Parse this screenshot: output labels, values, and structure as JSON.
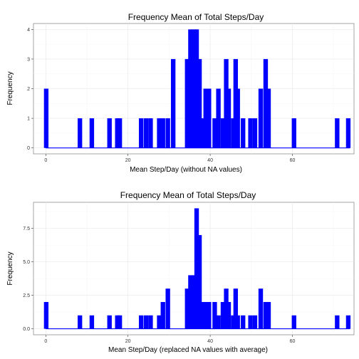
{
  "chart_data": [
    {
      "type": "bar",
      "title": "Frequency Mean of Total Steps/Day",
      "xlabel": "Mean Step/Day (without NA values)",
      "ylabel": "Frequency",
      "xlim": [
        -3,
        75
      ],
      "ylim": [
        -0.2,
        4.2
      ],
      "xticks": [
        0,
        20,
        40,
        60
      ],
      "yticks": [
        0,
        1,
        2,
        3,
        4
      ],
      "ytick_labels": [
        "0",
        "1",
        "2",
        "3",
        "4"
      ],
      "color": "#0000ff",
      "grid": true,
      "x": [
        0.1,
        8.3,
        11.2,
        15.5,
        17.4,
        18.0,
        23.2,
        24.4,
        25.5,
        27.6,
        28.5,
        29.7,
        31.0,
        34.4,
        35.2,
        36.1,
        36.7,
        37.4,
        38.2,
        38.9,
        39.7,
        41.1,
        42.0,
        43.1,
        43.9,
        44.5,
        45.6,
        46.2,
        46.7,
        48.0,
        49.8,
        50.9,
        52.3,
        53.5,
        54.2,
        60.4,
        70.9,
        73.6
      ],
      "values": [
        2,
        1,
        1,
        1,
        1,
        1,
        1,
        1,
        1,
        1,
        1,
        1,
        3,
        3,
        4,
        4,
        4,
        3,
        1,
        2,
        2,
        1,
        2,
        1,
        3,
        2,
        1,
        3,
        2,
        1,
        1,
        1,
        2,
        3,
        2,
        1,
        1,
        1
      ]
    },
    {
      "type": "bar",
      "title": "Frequency Mean of Total Steps/Day",
      "xlabel": "Mean Step/Day (replaced NA values with average)",
      "ylabel": "Frequency",
      "xlim": [
        -3,
        75
      ],
      "ylim": [
        -0.45,
        9.45
      ],
      "xticks": [
        0,
        20,
        40,
        60
      ],
      "yticks": [
        0,
        2.5,
        5,
        7.5
      ],
      "ytick_labels": [
        "0.0",
        "2.5",
        "5.0",
        "7.5"
      ],
      "color": "#0000ff",
      "grid": true,
      "x": [
        0.1,
        8.3,
        11.2,
        15.5,
        17.4,
        18.0,
        23.2,
        24.4,
        25.5,
        27.6,
        28.5,
        29.7,
        34.4,
        35.2,
        36.1,
        36.7,
        37.4,
        38.2,
        38.9,
        39.7,
        41.1,
        42.0,
        43.1,
        43.9,
        44.5,
        45.6,
        46.2,
        46.7,
        48.0,
        49.8,
        50.9,
        52.3,
        53.5,
        54.2,
        60.4,
        70.9,
        73.6
      ],
      "values": [
        2,
        1,
        1,
        1,
        1,
        1,
        1,
        1,
        1,
        1,
        2,
        3,
        3,
        4,
        4,
        9,
        7,
        2,
        2,
        2,
        2,
        1,
        2,
        3,
        2,
        1,
        3,
        1,
        1,
        1,
        1,
        3,
        2,
        2,
        1,
        1,
        1
      ]
    }
  ]
}
